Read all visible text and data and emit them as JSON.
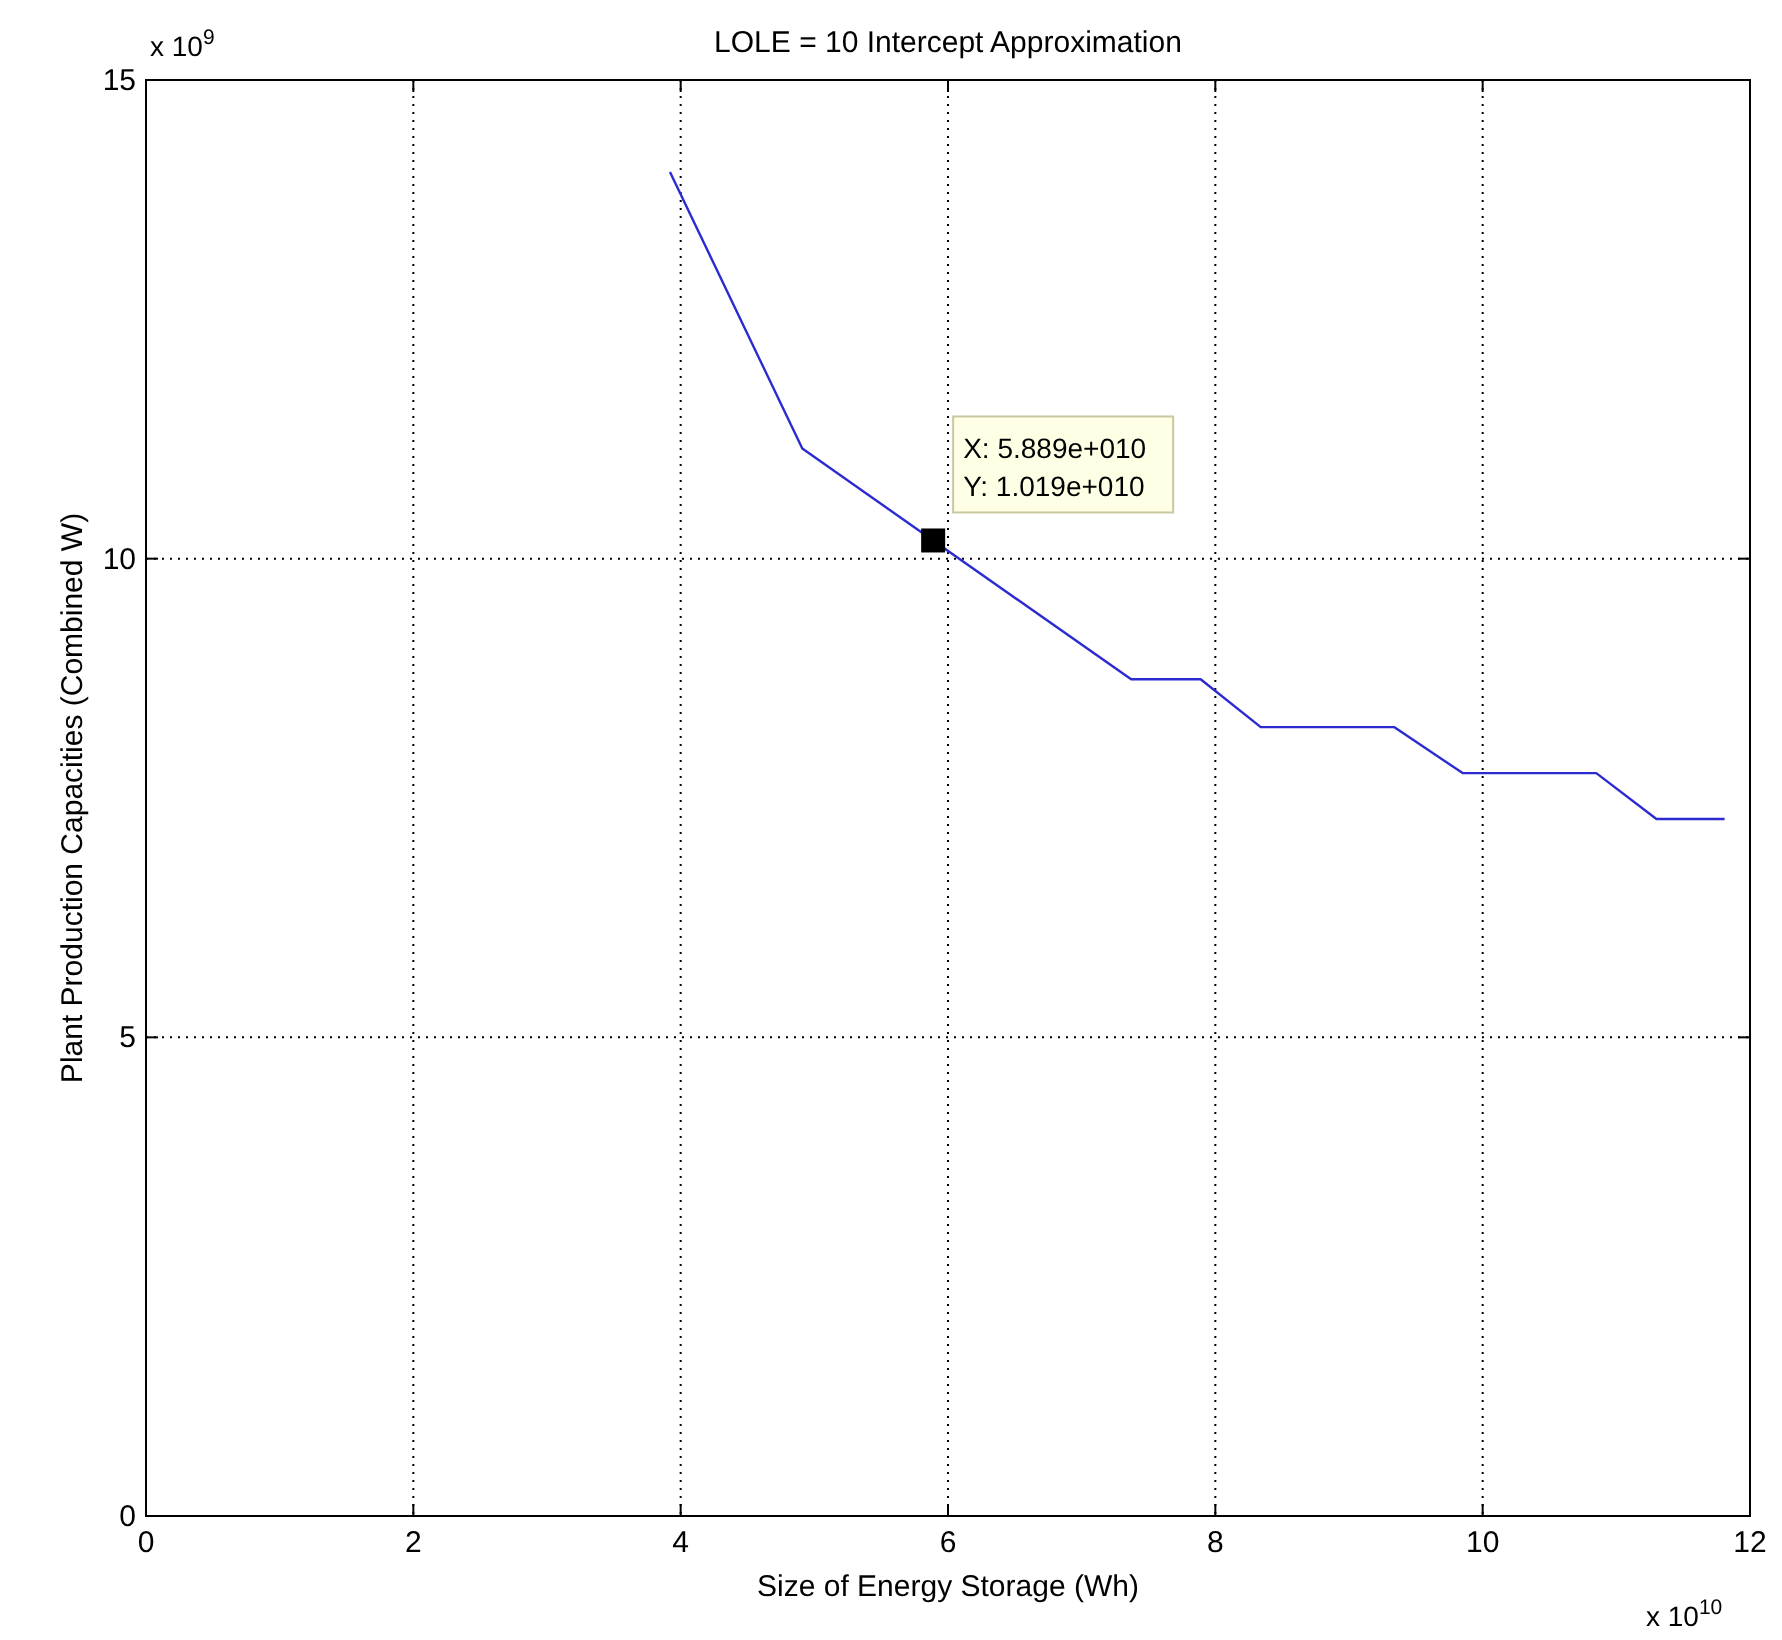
{
  "chart_data": {
    "type": "line",
    "title": "LOLE = 10 Intercept Approximation",
    "xlabel": "Size of Energy Storage (Wh)",
    "ylabel": "Plant Production Capacities (Combined W)",
    "xlim": [
      0,
      12
    ],
    "xticks": [
      0,
      2,
      4,
      6,
      8,
      10,
      12
    ],
    "ylim": [
      0,
      15
    ],
    "yticks": [
      0,
      5,
      10,
      15
    ],
    "grid": true,
    "line_style": "solid",
    "series": [
      {
        "color": "#2b2bd0",
        "x": [
          3.92,
          4.91,
          5.889,
          7.37,
          7.89,
          8.34,
          9.34,
          9.85,
          10.85,
          11.3,
          11.81
        ],
        "values": [
          14.04,
          11.15,
          10.19,
          8.74,
          8.74,
          8.24,
          8.24,
          7.76,
          7.76,
          7.28,
          7.28
        ]
      }
    ],
    "annotations": [
      "x 10$^{9}$",
      "x 10$^{10}$",
      {
        "text": "X: 5.889e+010\nY: 1.019e+010",
        "x": 5.889,
        "y": 10.19
      }
    ]
  }
}
